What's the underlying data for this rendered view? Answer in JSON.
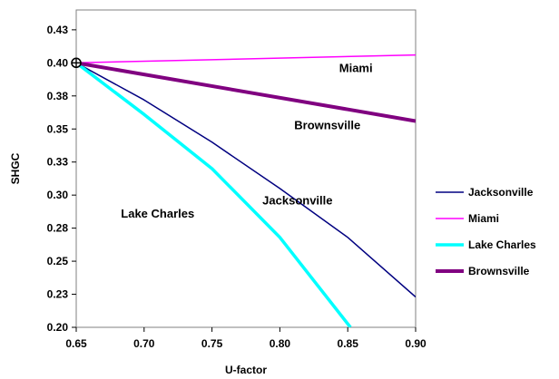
{
  "chart_data": {
    "type": "line",
    "xlabel": "U-factor",
    "ylabel": "SHGC",
    "xlim": [
      0.65,
      0.9
    ],
    "ylim": [
      0.2,
      0.44
    ],
    "x_ticks": [
      "0.65",
      "0.70",
      "0.75",
      "0.80",
      "0.85",
      "0.90"
    ],
    "y_ticks": [
      "0.20",
      "0.23",
      "0.25",
      "0.28",
      "0.30",
      "0.33",
      "0.35",
      "0.38",
      "0.40",
      "0.43"
    ],
    "grid": false,
    "legend_placement": "right",
    "series": [
      {
        "name": "Jacksonville",
        "color": "#000080",
        "stroke_width": 1.5,
        "x": [
          0.65,
          0.7,
          0.75,
          0.8,
          0.85,
          0.9
        ],
        "y": [
          0.4,
          0.372,
          0.34,
          0.305,
          0.268,
          0.223
        ]
      },
      {
        "name": "Miami",
        "color": "#ff00ff",
        "stroke_width": 1.5,
        "x": [
          0.65,
          0.9
        ],
        "y": [
          0.4,
          0.406
        ]
      },
      {
        "name": "Lake Charles",
        "color": "#00ffff",
        "stroke_width": 3.5,
        "x": [
          0.65,
          0.7,
          0.75,
          0.8,
          0.852
        ],
        "y": [
          0.4,
          0.361,
          0.32,
          0.268,
          0.2
        ]
      },
      {
        "name": "Brownsville",
        "color": "#800080",
        "stroke_width": 4,
        "x": [
          0.65,
          0.9
        ],
        "y": [
          0.4,
          0.356
        ]
      }
    ],
    "annotations": [
      {
        "text": "Miami",
        "x": 0.856,
        "y": 0.393
      },
      {
        "text": "Brownsville",
        "x": 0.835,
        "y": 0.35
      },
      {
        "text": "Jacksonville",
        "x": 0.813,
        "y": 0.293
      },
      {
        "text": "Lake Charles",
        "x": 0.71,
        "y": 0.283
      }
    ],
    "marker": {
      "x": 0.65,
      "y": 0.4,
      "symbol": "crosshair-circle"
    }
  }
}
